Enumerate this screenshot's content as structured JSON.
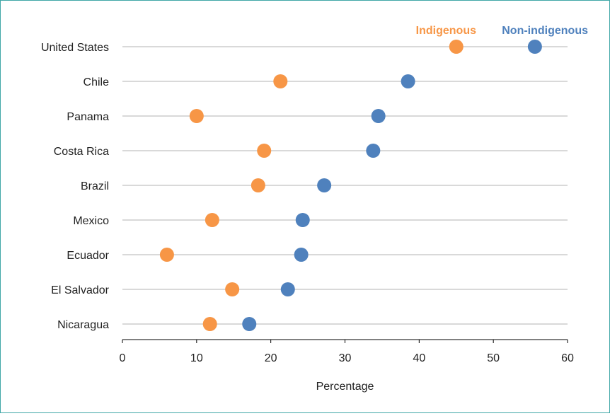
{
  "chart_data": {
    "type": "scatter",
    "subtype": "dumbbell",
    "title": "",
    "xlabel": "Percentage",
    "ylabel": "",
    "xlim": [
      0,
      60
    ],
    "x_ticks": [
      0,
      10,
      20,
      30,
      40,
      50,
      60
    ],
    "grid": false,
    "legend_position": "top-right",
    "categories": [
      "United States",
      "Chile",
      "Panama",
      "Costa Rica",
      "Brazil",
      "Mexico",
      "Ecuador",
      "El Salvador",
      "Nicaragua"
    ],
    "series": [
      {
        "name": "Indigenous",
        "color": "#f79646",
        "values": [
          45.0,
          21.3,
          10.0,
          19.1,
          18.3,
          12.1,
          6.0,
          14.8,
          11.8
        ]
      },
      {
        "name": "Non-indigenous",
        "color": "#4f81bd",
        "values": [
          55.6,
          38.5,
          34.5,
          33.8,
          27.2,
          24.3,
          24.1,
          22.3,
          17.1
        ]
      }
    ],
    "connector_color": "#d9d9d9"
  }
}
